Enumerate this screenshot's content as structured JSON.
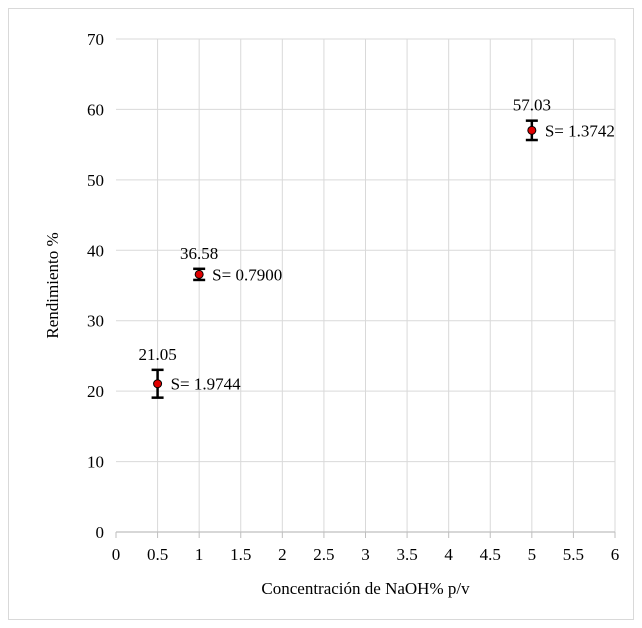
{
  "chart_data": {
    "type": "scatter",
    "title": "",
    "xlabel": "Concentración de NaOH% p/v",
    "ylabel": "Rendimiento %",
    "xlim": [
      0,
      6
    ],
    "ylim": [
      0,
      70
    ],
    "xticks": [
      "0",
      "0.5",
      "1",
      "1.5",
      "2",
      "2.5",
      "3",
      "3.5",
      "4",
      "4.5",
      "5",
      "5.5",
      "6"
    ],
    "yticks": [
      "0",
      "10",
      "20",
      "30",
      "40",
      "50",
      "60",
      "70"
    ],
    "grid": true,
    "points": [
      {
        "x": 0.5,
        "y": 21.05,
        "error": 1.9744,
        "value_label": "21.05",
        "sd_label": "S= 1.9744"
      },
      {
        "x": 1,
        "y": 36.58,
        "error": 0.79,
        "value_label": "36.58",
        "sd_label": "S= 0.7900"
      },
      {
        "x": 5,
        "y": 57.03,
        "error": 1.3742,
        "value_label": "57.03",
        "sd_label": "S= 1.3742"
      }
    ],
    "colors": {
      "marker_fill": "#e00000",
      "marker_edge": "#000000",
      "grid": "#d9d9d9",
      "axis": "#bfbfbf"
    }
  }
}
